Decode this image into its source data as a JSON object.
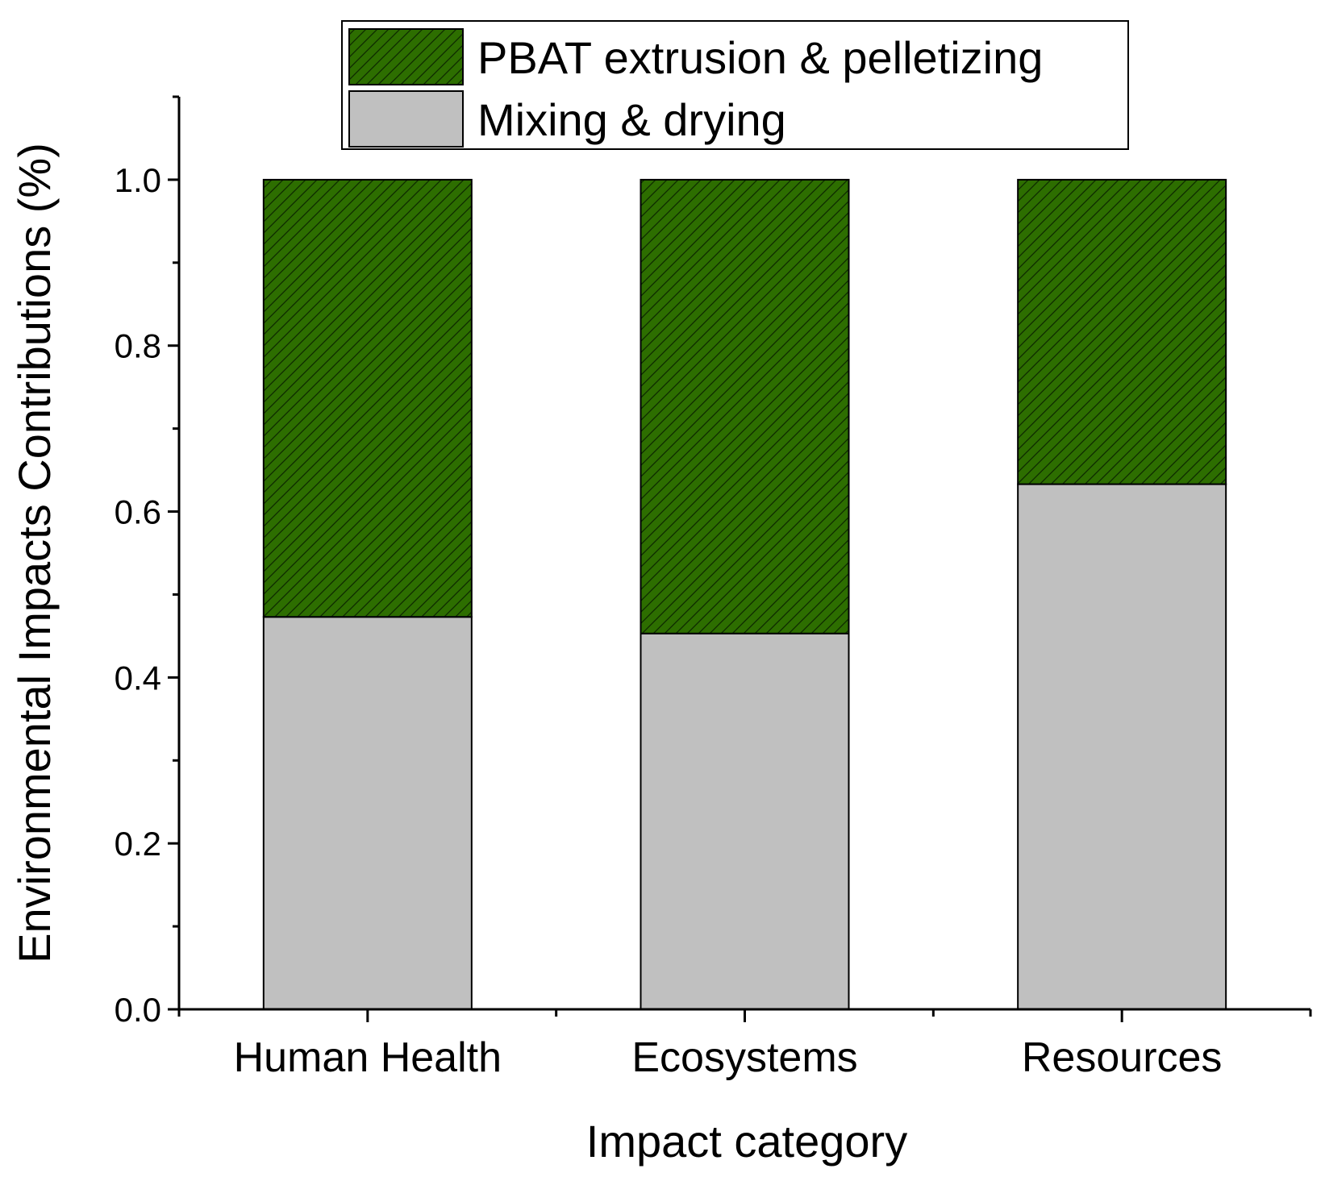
{
  "chart_data": {
    "type": "bar",
    "stacked": true,
    "categories": [
      "Human Health",
      "Ecosystems",
      "Resources"
    ],
    "series": [
      {
        "name": "Mixing & drying",
        "values": [
          0.473,
          0.453,
          0.633
        ],
        "color": "#c0c0c0",
        "pattern": "none"
      },
      {
        "name": "PBAT extrusion & pelletizing",
        "values": [
          0.527,
          0.547,
          0.367
        ],
        "color": "#2d6e00",
        "pattern": "diagonal-hatch"
      }
    ],
    "xlabel": "Impact category",
    "ylabel": "Environmental Impacts Contributions (%)",
    "ylim": [
      0,
      1.1
    ],
    "yticks": [
      0.0,
      0.2,
      0.4,
      0.6,
      0.8,
      1.0
    ],
    "ytick_labels": [
      "0.0",
      "0.2",
      "0.4",
      "0.6",
      "0.8",
      "1.0"
    ],
    "grid": false,
    "legend_position": "top-center",
    "legend_order": [
      "PBAT extrusion & pelletizing",
      "Mixing & drying"
    ]
  }
}
